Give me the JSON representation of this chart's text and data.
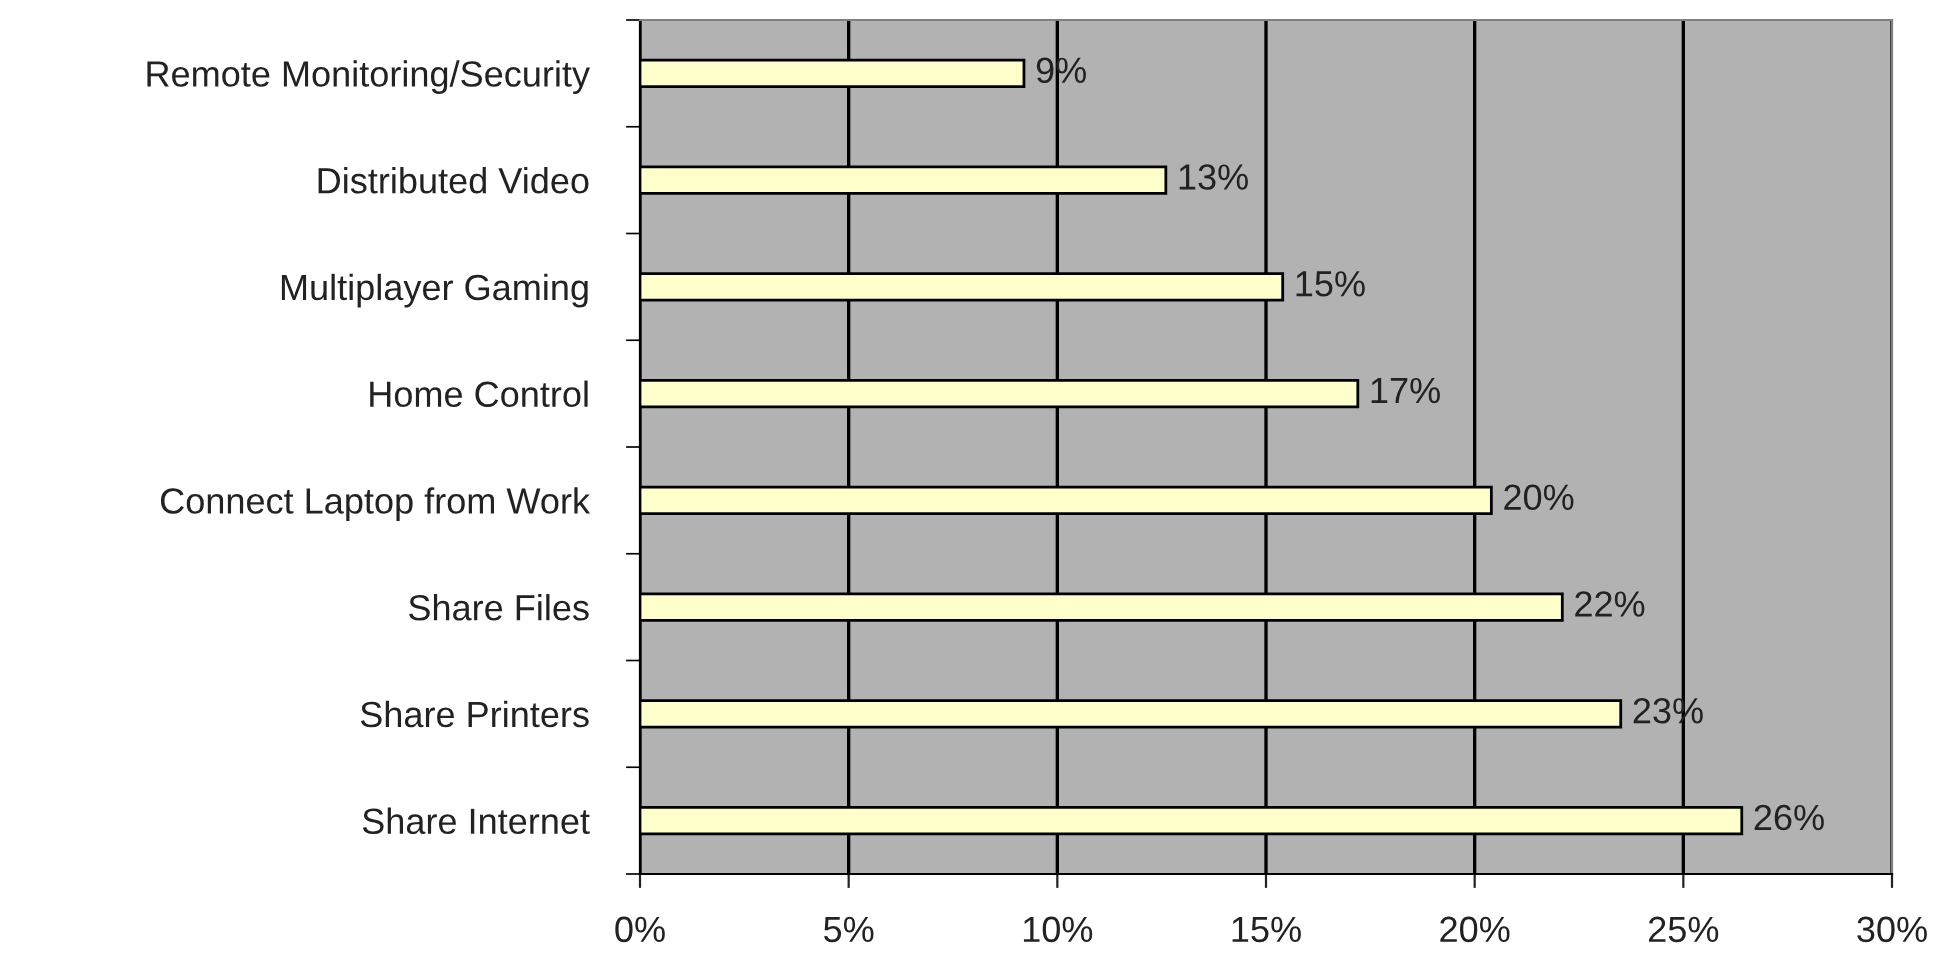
{
  "chart_data": {
    "type": "bar",
    "orientation": "horizontal",
    "categories": [
      "Remote Monitoring/Security",
      "Distributed Video",
      "Multiplayer Gaming",
      "Home Control",
      "Connect Laptop from Work",
      "Share Files",
      "Share Printers",
      "Share Internet"
    ],
    "values": [
      9.2,
      12.6,
      15.4,
      17.2,
      20.4,
      22.1,
      23.5,
      26.4
    ],
    "value_labels": [
      "9%",
      "13%",
      "15%",
      "17%",
      "20%",
      "22%",
      "23%",
      "26%"
    ],
    "color": "#ffffcc",
    "xlim": [
      0,
      30
    ],
    "xticks": [
      {
        "value": 0,
        "label": "0%"
      },
      {
        "value": 5,
        "label": "5%"
      },
      {
        "value": 10,
        "label": "10%"
      },
      {
        "value": 15,
        "label": "15%"
      },
      {
        "value": 20,
        "label": "20%"
      },
      {
        "value": 25,
        "label": "25%"
      },
      {
        "value": 30,
        "label": "30%"
      }
    ],
    "grid": "x"
  }
}
